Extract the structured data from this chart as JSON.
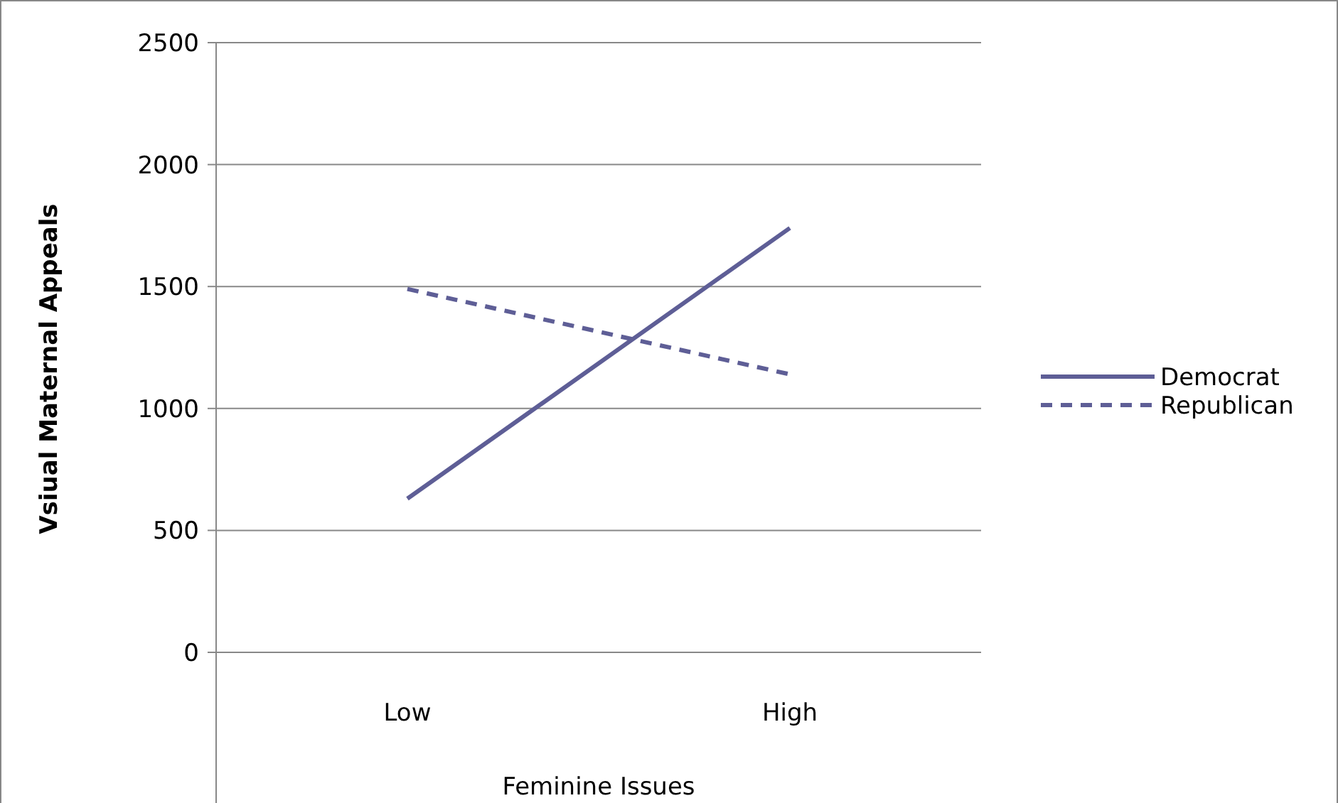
{
  "chart_data": {
    "type": "line",
    "xlabel": "Feminine Issues",
    "ylabel": "Vsiual Maternal Appeals",
    "categories": [
      "Low",
      "High"
    ],
    "series": [
      {
        "name": "Democrat",
        "color": "#5e5e96",
        "values": [
          630,
          1740
        ],
        "line_style": "solid"
      },
      {
        "name": "Republican",
        "color": "#5e5e96",
        "values": [
          1490,
          1140
        ],
        "line_style": "dashed"
      }
    ],
    "ylim": [
      0,
      2500
    ],
    "yticks": [
      0,
      500,
      1000,
      1500,
      2000,
      2500
    ],
    "grid": "y",
    "legend": "right",
    "marker": "none"
  }
}
